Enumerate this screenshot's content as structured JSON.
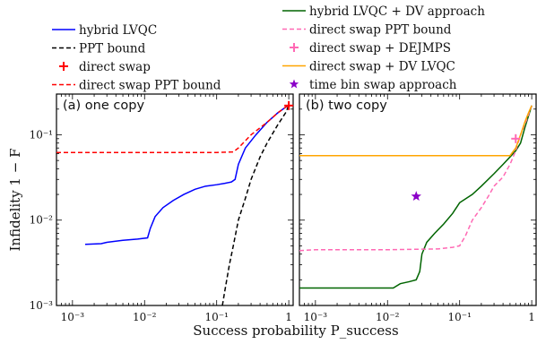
{
  "chart_data": [
    {
      "type": "line",
      "panel_label": "(a) one copy",
      "xlabel": "Success probability P_success",
      "ylabel": "Infidelity 1 − F",
      "xscale": "log",
      "yscale": "log",
      "xlim": [
        0.0006,
        1.15
      ],
      "ylim": [
        0.001,
        0.3
      ],
      "x_ticks": [
        "10^-3",
        "10^-2",
        "10^-1",
        "1"
      ],
      "y_ticks": [
        "10^-3",
        "10^-2",
        "10^-1"
      ],
      "legend_placement": "above panel",
      "series": [
        {
          "name": "hybrid LVQC",
          "color": "#0000ff",
          "style": "solid",
          "x": [
            0.0015,
            0.0025,
            0.003,
            0.005,
            0.008,
            0.011,
            0.012,
            0.014,
            0.018,
            0.025,
            0.035,
            0.05,
            0.07,
            0.1,
            0.13,
            0.16,
            0.18,
            0.2,
            0.25,
            0.35,
            0.5,
            0.7,
            0.9,
            1.0
          ],
          "y": [
            0.0052,
            0.0053,
            0.0055,
            0.0058,
            0.006,
            0.0062,
            0.008,
            0.011,
            0.014,
            0.017,
            0.02,
            0.023,
            0.025,
            0.026,
            0.027,
            0.028,
            0.03,
            0.045,
            0.07,
            0.1,
            0.14,
            0.18,
            0.21,
            0.22
          ]
        },
        {
          "name": "PPT bound",
          "color": "#000000",
          "style": "dashed",
          "x": [
            0.12,
            0.13,
            0.15,
            0.17,
            0.2,
            0.25,
            0.3,
            0.4,
            0.5,
            0.7,
            0.9,
            1.0
          ],
          "y": [
            0.001,
            0.0015,
            0.003,
            0.005,
            0.01,
            0.018,
            0.03,
            0.055,
            0.08,
            0.13,
            0.18,
            0.22
          ]
        },
        {
          "name": "direct swap",
          "color": "#ff0000",
          "style": "marker +",
          "x": [
            1.0
          ],
          "y": [
            0.22
          ]
        },
        {
          "name": "direct swap PPT bound",
          "color": "#ff0000",
          "style": "dashed",
          "x": [
            0.0006,
            0.001,
            0.01,
            0.1,
            0.17,
            0.2,
            0.3,
            0.5,
            0.7,
            0.9,
            1.0
          ],
          "y": [
            0.062,
            0.062,
            0.062,
            0.062,
            0.063,
            0.07,
            0.1,
            0.14,
            0.18,
            0.21,
            0.22
          ]
        }
      ]
    },
    {
      "type": "line",
      "panel_label": "(b) two copy",
      "xscale": "log",
      "yscale": "log",
      "xlim": [
        0.0006,
        1.15
      ],
      "ylim": [
        0.001,
        0.3
      ],
      "x_ticks": [
        "10^-3",
        "10^-2",
        "10^-1",
        "1"
      ],
      "legend_placement": "above panel",
      "series": [
        {
          "name": "hybrid LVQC + DV approach",
          "color": "#006400",
          "style": "solid",
          "x": [
            0.0006,
            0.001,
            0.005,
            0.012,
            0.015,
            0.02,
            0.025,
            0.028,
            0.03,
            0.035,
            0.045,
            0.06,
            0.08,
            0.1,
            0.15,
            0.2,
            0.3,
            0.4,
            0.5,
            0.6,
            0.7,
            0.8,
            1.0
          ],
          "y": [
            0.0016,
            0.0016,
            0.0016,
            0.0016,
            0.0018,
            0.0019,
            0.002,
            0.0025,
            0.004,
            0.0055,
            0.007,
            0.009,
            0.012,
            0.016,
            0.02,
            0.025,
            0.035,
            0.045,
            0.055,
            0.065,
            0.08,
            0.12,
            0.22
          ]
        },
        {
          "name": "direct swap PPT bound",
          "color": "#ff69b4",
          "style": "dashed",
          "x": [
            0.0006,
            0.001,
            0.01,
            0.05,
            0.08,
            0.1,
            0.12,
            0.15,
            0.2,
            0.25,
            0.3,
            0.4,
            0.5,
            0.6,
            0.7,
            0.85,
            1.0
          ],
          "y": [
            0.0044,
            0.0045,
            0.0045,
            0.0046,
            0.0048,
            0.005,
            0.0065,
            0.01,
            0.014,
            0.019,
            0.025,
            0.032,
            0.045,
            0.065,
            0.1,
            0.15,
            0.22
          ]
        },
        {
          "name": "direct swap + DEJMPS",
          "color": "#ff69b4",
          "style": "marker +",
          "x": [
            0.6
          ],
          "y": [
            0.09
          ]
        },
        {
          "name": "direct swap + DV LVQC",
          "color": "#ffa500",
          "style": "solid",
          "x": [
            0.0006,
            0.001,
            0.01,
            0.1,
            0.5,
            0.6,
            0.7,
            0.8,
            0.9,
            1.0
          ],
          "y": [
            0.057,
            0.057,
            0.057,
            0.057,
            0.057,
            0.07,
            0.1,
            0.14,
            0.18,
            0.22
          ]
        },
        {
          "name": "time bin swap approach",
          "color": "#8b00c8",
          "style": "marker *",
          "x": [
            0.025
          ],
          "y": [
            0.019
          ]
        }
      ]
    }
  ]
}
